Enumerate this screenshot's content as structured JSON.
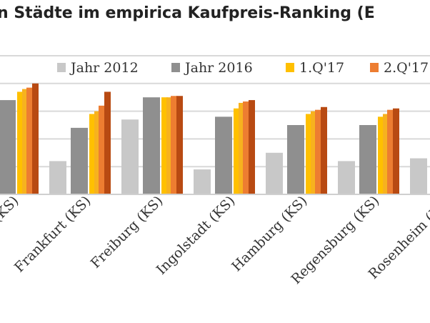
{
  "chart_data": {
    "type": "bar",
    "title": "n Städte im empirica Kaufpreis-Ranking (E",
    "xlabel": "",
    "ylabel": "",
    "ylim": [
      0,
      5
    ],
    "legend_position": "top",
    "categories": [
      "(KS)",
      "Frankfurt (KS)",
      "Freiburg (KS)",
      "Ingolstadt (KS)",
      "Hamburg (KS)",
      "Regensburg (KS)",
      "Rosenheim (KS)"
    ],
    "series": [
      {
        "name": "Jahr 2012",
        "color": "#c8c8c8",
        "values": [
          null,
          1.2,
          2.7,
          0.9,
          1.5,
          1.2,
          1.3
        ]
      },
      {
        "name": "Jahr 2016",
        "color": "#8f8f8f",
        "values": [
          3.4,
          2.4,
          3.5,
          2.8,
          2.5,
          2.5,
          2.4
        ]
      },
      {
        "name": "1.Q'17",
        "color": "#ffc000",
        "values": [
          3.7,
          2.9,
          3.5,
          3.1,
          2.9,
          2.8,
          null
        ]
      },
      {
        "name": "",
        "color": "#f7b21e",
        "values": [
          3.8,
          3.0,
          3.5,
          3.3,
          3.0,
          2.9,
          null
        ]
      },
      {
        "name": "2.Q'17",
        "color": "#ed7d31",
        "values": [
          3.85,
          3.2,
          3.55,
          3.35,
          3.05,
          3.05,
          null
        ]
      },
      {
        "name": "",
        "color": "#b84a12",
        "values": [
          4.0,
          3.7,
          3.55,
          3.4,
          3.15,
          3.1,
          null
        ]
      }
    ]
  }
}
